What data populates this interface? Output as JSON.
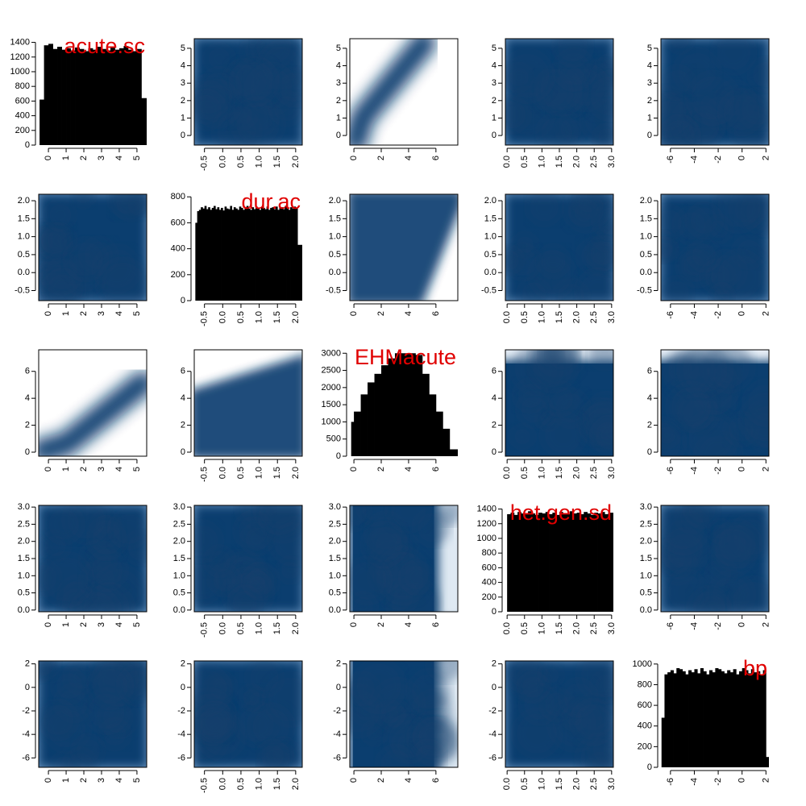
{
  "colors": {
    "background": "#ffffff",
    "axis": "#000000",
    "histogram": "#000000",
    "label": "#e00000",
    "density_dark": "#0b3e6f",
    "density_light": "#ffffff"
  },
  "variables": [
    "acute.sc",
    "dur.ac",
    "EHMacute",
    "het.gen.sd",
    "bp"
  ],
  "chart_data": {
    "type": "scatterplot-matrix",
    "diagonal": "histogram",
    "off_diagonal": "smoothed density scatter",
    "axes": [
      {
        "name": "acute.sc",
        "range": [
          -0.55,
          5.55
        ],
        "ticks": [
          0,
          1,
          2,
          3,
          4,
          5
        ],
        "tick_labels": [
          "0",
          "1",
          "2",
          "3",
          "4",
          "5"
        ],
        "ticks_y": [
          0,
          1,
          2,
          3,
          4,
          5
        ],
        "tick_labels_y": [
          "0",
          "1",
          "2",
          "3",
          "4",
          "5"
        ]
      },
      {
        "name": "dur.ac",
        "range": [
          -0.78,
          2.18
        ],
        "ticks": [
          -0.5,
          0.0,
          0.5,
          1.0,
          1.5,
          2.0
        ],
        "tick_labels": [
          "-0.5",
          "0.0",
          "0.5",
          "1.0",
          "1.5",
          "2.0"
        ],
        "ticks_y": [
          -0.5,
          0.0,
          0.5,
          1.0,
          1.5,
          2.0
        ],
        "tick_labels_y": [
          "-0.5",
          "0.0",
          "0.5",
          "1.0",
          "1.5",
          "2.0"
        ]
      },
      {
        "name": "EHMacute",
        "range": [
          -0.3,
          7.6
        ],
        "ticks": [
          0,
          2,
          4,
          6
        ],
        "tick_labels": [
          "0",
          "2",
          "4",
          "6"
        ],
        "ticks_y": [
          0,
          2,
          4,
          6
        ],
        "tick_labels_y": [
          "0",
          "2",
          "4",
          "6"
        ]
      },
      {
        "name": "het.gen.sd",
        "range": [
          -0.05,
          3.05
        ],
        "ticks": [
          0.0,
          0.5,
          1.0,
          1.5,
          2.0,
          2.5,
          3.0
        ],
        "tick_labels": [
          "0.0",
          "0.5",
          "1.0",
          "1.5",
          "2.0",
          "2.5",
          "3.0"
        ],
        "ticks_y": [
          0.0,
          0.5,
          1.0,
          1.5,
          2.0,
          2.5,
          3.0
        ],
        "tick_labels_y": [
          "0.0",
          "0.5",
          "1.0",
          "1.5",
          "2.0",
          "2.5",
          "3.0"
        ]
      },
      {
        "name": "bp",
        "range": [
          -6.8,
          2.25
        ],
        "ticks": [
          -6,
          -4,
          -2,
          0,
          2
        ],
        "tick_labels": [
          "-6",
          "-4",
          "-2",
          "0",
          "2"
        ],
        "ticks_y": [
          -6,
          -4,
          -2,
          0,
          2
        ],
        "tick_labels_y": [
          "-6",
          "-4",
          "-2",
          "0",
          "2"
        ]
      }
    ],
    "histograms": [
      {
        "variable": "acute.sc",
        "ylim": [
          0,
          1450
        ],
        "ticks": [
          0,
          200,
          400,
          600,
          800,
          1000,
          1200,
          1400
        ],
        "tick_labels": [
          "0",
          "200",
          "400",
          "600",
          "800",
          "1000",
          "1200",
          "1400"
        ],
        "bins": [
          [
            -0.5,
            620
          ],
          [
            -0.25,
            1360
          ],
          [
            0,
            1380
          ],
          [
            0.25,
            1310
          ],
          [
            0.5,
            1340
          ],
          [
            0.75,
            1300
          ],
          [
            1,
            1320
          ],
          [
            1.25,
            1290
          ],
          [
            1.5,
            1330
          ],
          [
            1.75,
            1310
          ],
          [
            2,
            1280
          ],
          [
            2.25,
            1320
          ],
          [
            2.5,
            1300
          ],
          [
            2.75,
            1340
          ],
          [
            3,
            1310
          ],
          [
            3.25,
            1290
          ],
          [
            3.5,
            1330
          ],
          [
            3.75,
            1300
          ],
          [
            4,
            1320
          ],
          [
            4.25,
            1350
          ],
          [
            4.5,
            1300
          ],
          [
            4.75,
            1280
          ],
          [
            5,
            1310
          ],
          [
            5.25,
            640
          ]
        ]
      },
      {
        "variable": "dur.ac",
        "ylim": [
          0,
          820
        ],
        "ticks": [
          0,
          200,
          400,
          600,
          800
        ],
        "tick_labels": [
          "0",
          "200",
          "400",
          "600",
          "800"
        ],
        "bins": [
          [
            -0.75,
            600
          ],
          [
            -0.7,
            690
          ],
          [
            -0.65,
            700
          ],
          [
            -0.6,
            720
          ],
          [
            -0.55,
            710
          ],
          [
            -0.5,
            730
          ],
          [
            -0.45,
            705
          ],
          [
            -0.4,
            720
          ],
          [
            -0.35,
            700
          ],
          [
            -0.3,
            715
          ],
          [
            -0.25,
            730
          ],
          [
            -0.2,
            705
          ],
          [
            -0.15,
            720
          ],
          [
            -0.1,
            700
          ],
          [
            -0.05,
            715
          ],
          [
            0,
            695
          ],
          [
            0.05,
            725
          ],
          [
            0.1,
            710
          ],
          [
            0.15,
            705
          ],
          [
            0.2,
            730
          ],
          [
            0.25,
            700
          ],
          [
            0.3,
            720
          ],
          [
            0.35,
            710
          ],
          [
            0.4,
            700
          ],
          [
            0.45,
            725
          ],
          [
            0.5,
            715
          ],
          [
            0.55,
            700
          ],
          [
            0.6,
            720
          ],
          [
            0.65,
            730
          ],
          [
            0.7,
            710
          ],
          [
            0.75,
            700
          ],
          [
            0.8,
            720
          ],
          [
            0.85,
            705
          ],
          [
            0.9,
            725
          ],
          [
            0.95,
            710
          ],
          [
            1,
            700
          ],
          [
            1.05,
            720
          ],
          [
            1.1,
            715
          ],
          [
            1.15,
            705
          ],
          [
            1.2,
            725
          ],
          [
            1.25,
            700
          ],
          [
            1.3,
            715
          ],
          [
            1.35,
            720
          ],
          [
            1.4,
            705
          ],
          [
            1.45,
            725
          ],
          [
            1.5,
            700
          ],
          [
            1.55,
            715
          ],
          [
            1.6,
            720
          ],
          [
            1.65,
            705
          ],
          [
            1.7,
            730
          ],
          [
            1.75,
            710
          ],
          [
            1.8,
            700
          ],
          [
            1.85,
            720
          ],
          [
            1.9,
            710
          ],
          [
            1.95,
            725
          ],
          [
            2,
            715
          ],
          [
            2.05,
            430
          ]
        ]
      },
      {
        "variable": "EHMacute",
        "ylim": [
          0,
          3100
        ],
        "ticks": [
          0,
          500,
          1000,
          1500,
          2000,
          2500,
          3000
        ],
        "tick_labels": [
          "0",
          "500",
          "1000",
          "1500",
          "2000",
          "2500",
          "3000"
        ],
        "bins": [
          [
            -0.2,
            1000
          ],
          [
            0,
            1300
          ],
          [
            0.5,
            1800
          ],
          [
            1,
            2150
          ],
          [
            1.5,
            2400
          ],
          [
            2,
            2650
          ],
          [
            2.5,
            2850
          ],
          [
            3,
            3000
          ],
          [
            3.5,
            3000
          ],
          [
            4,
            3000
          ],
          [
            4.5,
            2950
          ],
          [
            5,
            2400
          ],
          [
            5.5,
            1800
          ],
          [
            6,
            1300
          ],
          [
            6.5,
            800
          ],
          [
            7,
            200
          ]
        ]
      },
      {
        "variable": "het.gen.sd",
        "ylim": [
          0,
          1450
        ],
        "ticks": [
          0,
          200,
          400,
          600,
          800,
          1000,
          1200,
          1400
        ],
        "tick_labels": [
          "0",
          "200",
          "400",
          "600",
          "800",
          "1000",
          "1200",
          "1400"
        ],
        "bins": [
          [
            0,
            1330
          ],
          [
            0.1,
            1350
          ],
          [
            0.2,
            1320
          ],
          [
            0.3,
            1360
          ],
          [
            0.4,
            1340
          ],
          [
            0.5,
            1330
          ],
          [
            0.6,
            1370
          ],
          [
            0.7,
            1340
          ],
          [
            0.8,
            1320
          ],
          [
            0.9,
            1350
          ],
          [
            1,
            1340
          ],
          [
            1.1,
            1360
          ],
          [
            1.2,
            1330
          ],
          [
            1.3,
            1350
          ],
          [
            1.4,
            1320
          ],
          [
            1.5,
            1360
          ],
          [
            1.6,
            1340
          ],
          [
            1.7,
            1330
          ],
          [
            1.8,
            1370
          ],
          [
            1.9,
            1340
          ],
          [
            2,
            1350
          ],
          [
            2.1,
            1330
          ],
          [
            2.2,
            1360
          ],
          [
            2.3,
            1340
          ],
          [
            2.4,
            1320
          ],
          [
            2.5,
            1350
          ],
          [
            2.6,
            1340
          ],
          [
            2.7,
            1360
          ],
          [
            2.8,
            1330
          ],
          [
            2.9,
            1350
          ]
        ]
      },
      {
        "variable": "bp",
        "ylim": [
          0,
          1030
        ],
        "ticks": [
          0,
          200,
          400,
          600,
          800,
          1000
        ],
        "tick_labels": [
          "0",
          "200",
          "400",
          "600",
          "800",
          "1000"
        ],
        "bins": [
          [
            -6.75,
            480
          ],
          [
            -6.5,
            900
          ],
          [
            -6.25,
            920
          ],
          [
            -6,
            940
          ],
          [
            -5.75,
            910
          ],
          [
            -5.5,
            960
          ],
          [
            -5.25,
            950
          ],
          [
            -5,
            930
          ],
          [
            -4.75,
            900
          ],
          [
            -4.5,
            940
          ],
          [
            -4.25,
            920
          ],
          [
            -4,
            950
          ],
          [
            -3.75,
            910
          ],
          [
            -3.5,
            960
          ],
          [
            -3.25,
            930
          ],
          [
            -3,
            900
          ],
          [
            -2.75,
            940
          ],
          [
            -2.5,
            920
          ],
          [
            -2.25,
            960
          ],
          [
            -2,
            950
          ],
          [
            -1.75,
            930
          ],
          [
            -1.5,
            910
          ],
          [
            -1.25,
            940
          ],
          [
            -1,
            920
          ],
          [
            -0.75,
            950
          ],
          [
            -0.5,
            900
          ],
          [
            -0.25,
            930
          ],
          [
            0,
            960
          ],
          [
            0.25,
            940
          ],
          [
            0.5,
            910
          ],
          [
            0.75,
            950
          ],
          [
            1,
            920
          ],
          [
            1.25,
            930
          ],
          [
            1.5,
            900
          ],
          [
            1.75,
            940
          ],
          [
            2,
            100
          ]
        ]
      }
    ],
    "relationships": {
      "acute.sc|EHMacute": "strong positive monotonic band",
      "dur.ac|EHMacute": "positive, lower-right edge line",
      "other pairs": "uniform, no association"
    },
    "grid": false,
    "legend": "none"
  }
}
